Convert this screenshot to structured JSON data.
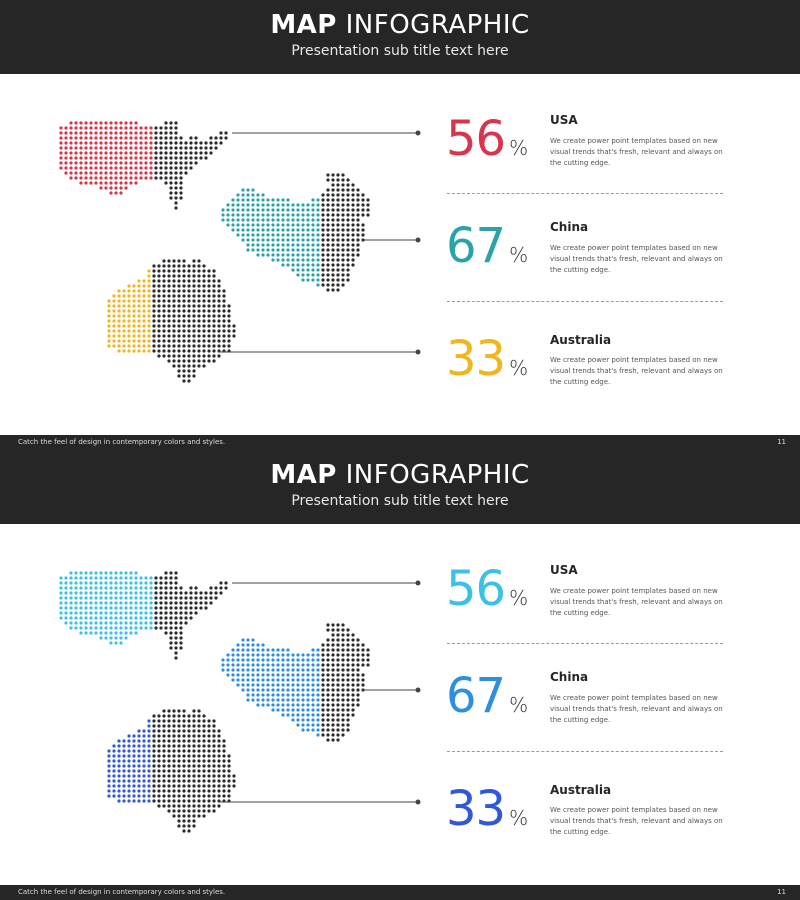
{
  "slides": [
    {
      "title_bold": "MAP",
      "title_light": "INFOGRAPHIC",
      "subtitle": "Presentation sub title text here",
      "footer_text": "Catch the feel of design in contemporary colors and styles.",
      "page_number": "11",
      "items": [
        {
          "country": "USA",
          "percent": "56",
          "percent_sign": "%",
          "color": "#d8344a",
          "description": "We create power point templates based on new visual trends that's fresh, relevant and always on the cutting edge."
        },
        {
          "country": "China",
          "percent": "67",
          "percent_sign": "%",
          "color": "#2aa3a8",
          "description": "We create power point templates based on new visual trends that's fresh, relevant and always on the cutting edge."
        },
        {
          "country": "Australia",
          "percent": "33",
          "percent_sign": "%",
          "color": "#f2b51b",
          "description": "We create power point templates based on new visual trends that's fresh, relevant and always on the cutting edge."
        }
      ]
    },
    {
      "title_bold": "MAP",
      "title_light": "INFOGRAPHIC",
      "subtitle": "Presentation sub title text here",
      "footer_text": "Catch the feel of design in contemporary colors and styles.",
      "page_number": "11",
      "items": [
        {
          "country": "USA",
          "percent": "56",
          "percent_sign": "%",
          "color": "#3cc1e6",
          "description": "We create power point templates based on new visual trends that's fresh, relevant and always on the cutting edge."
        },
        {
          "country": "China",
          "percent": "67",
          "percent_sign": "%",
          "color": "#2e8ee0",
          "description": "We create power point templates based on new visual trends that's fresh, relevant and always on the cutting edge."
        },
        {
          "country": "Australia",
          "percent": "33",
          "percent_sign": "%",
          "color": "#3058d8",
          "description": "We create power point templates based on new visual trends that's fresh, relevant and always on the cutting edge."
        }
      ]
    }
  ],
  "map_base_color": "#2b2b2b",
  "connector_color": "#444444"
}
